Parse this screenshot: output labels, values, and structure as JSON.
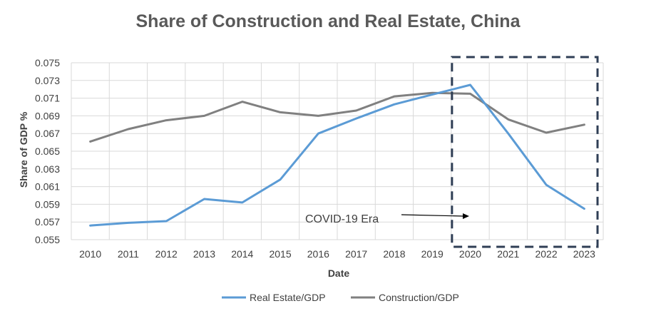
{
  "chart_data": {
    "type": "line",
    "title": "Share of Construction and Real Estate, China",
    "xlabel": "Date",
    "ylabel": "Share of GDP %",
    "x": [
      "2010",
      "2011",
      "2012",
      "2013",
      "2014",
      "2015",
      "2016",
      "2017",
      "2018",
      "2019",
      "2020",
      "2021",
      "2022",
      "2023"
    ],
    "ylim": [
      0.055,
      0.075
    ],
    "yticks": [
      "0.055",
      "0.057",
      "0.059",
      "0.061",
      "0.063",
      "0.065",
      "0.067",
      "0.069",
      "0.071",
      "0.073",
      "0.075"
    ],
    "grid": true,
    "legend_position": "bottom",
    "series": [
      {
        "name": "Real Estate/GDP",
        "color": "#5b9bd5",
        "values": [
          0.0566,
          0.0569,
          0.0571,
          0.0596,
          0.0592,
          0.0618,
          0.067,
          0.0687,
          0.0703,
          0.0714,
          0.0725,
          0.067,
          0.0612,
          0.0585
        ]
      },
      {
        "name": "Construction/GDP",
        "color": "#808080",
        "values": [
          0.0661,
          0.0675,
          0.0685,
          0.069,
          0.0706,
          0.0694,
          0.069,
          0.0696,
          0.0712,
          0.0716,
          0.0715,
          0.0686,
          0.0671,
          0.068
        ]
      }
    ],
    "annotation": {
      "text": "COVID-19 Era",
      "highlight_from": "2020",
      "highlight_to": "2023",
      "box_color": "#2f3e55"
    }
  }
}
